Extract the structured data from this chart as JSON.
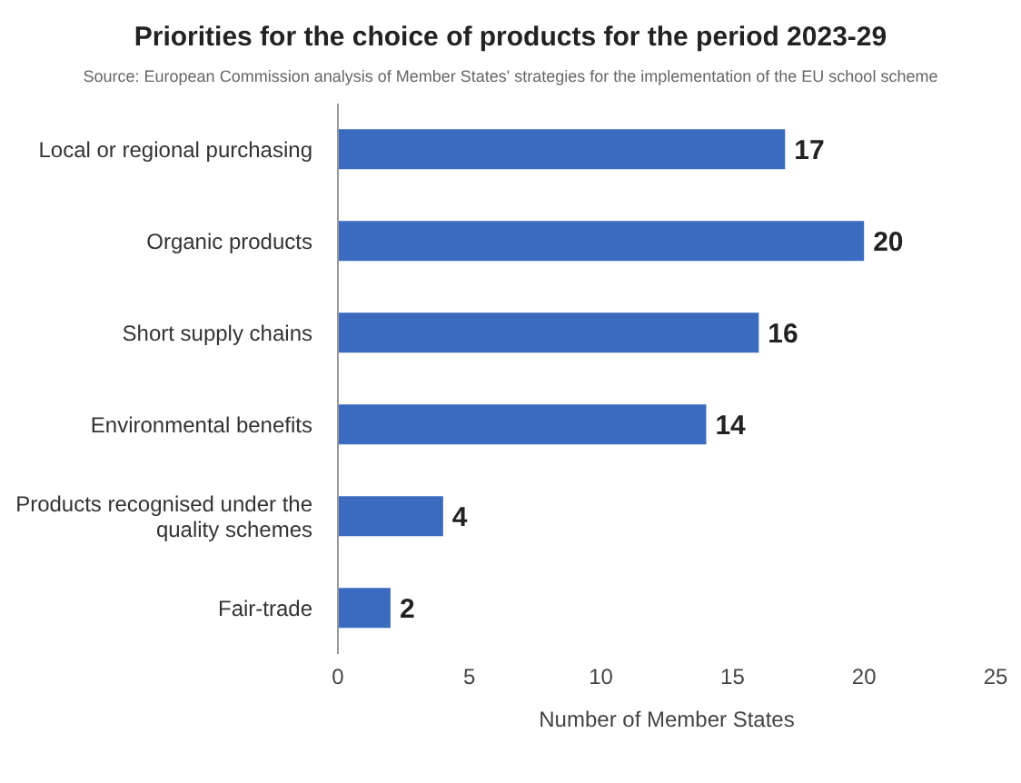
{
  "chart_data": {
    "type": "bar",
    "orientation": "horizontal",
    "title": "Priorities for the choice of products for the period 2023-29",
    "subtitle": "Source: European Commission analysis of Member States' strategies for the implementation of the EU school scheme",
    "categories": [
      "Local or regional purchasing",
      "Organic products",
      "Short supply chains",
      "Environmental benefits",
      "Products recognised under the quality schemes",
      "Fair-trade"
    ],
    "values": [
      17,
      20,
      16,
      14,
      4,
      2
    ],
    "color": "#3a6bbf",
    "xlim": [
      0,
      25
    ],
    "xticks": [
      0,
      5,
      10,
      15,
      20,
      25
    ],
    "xlabel": "Number of Member States",
    "data_labels": true,
    "grid": false
  }
}
